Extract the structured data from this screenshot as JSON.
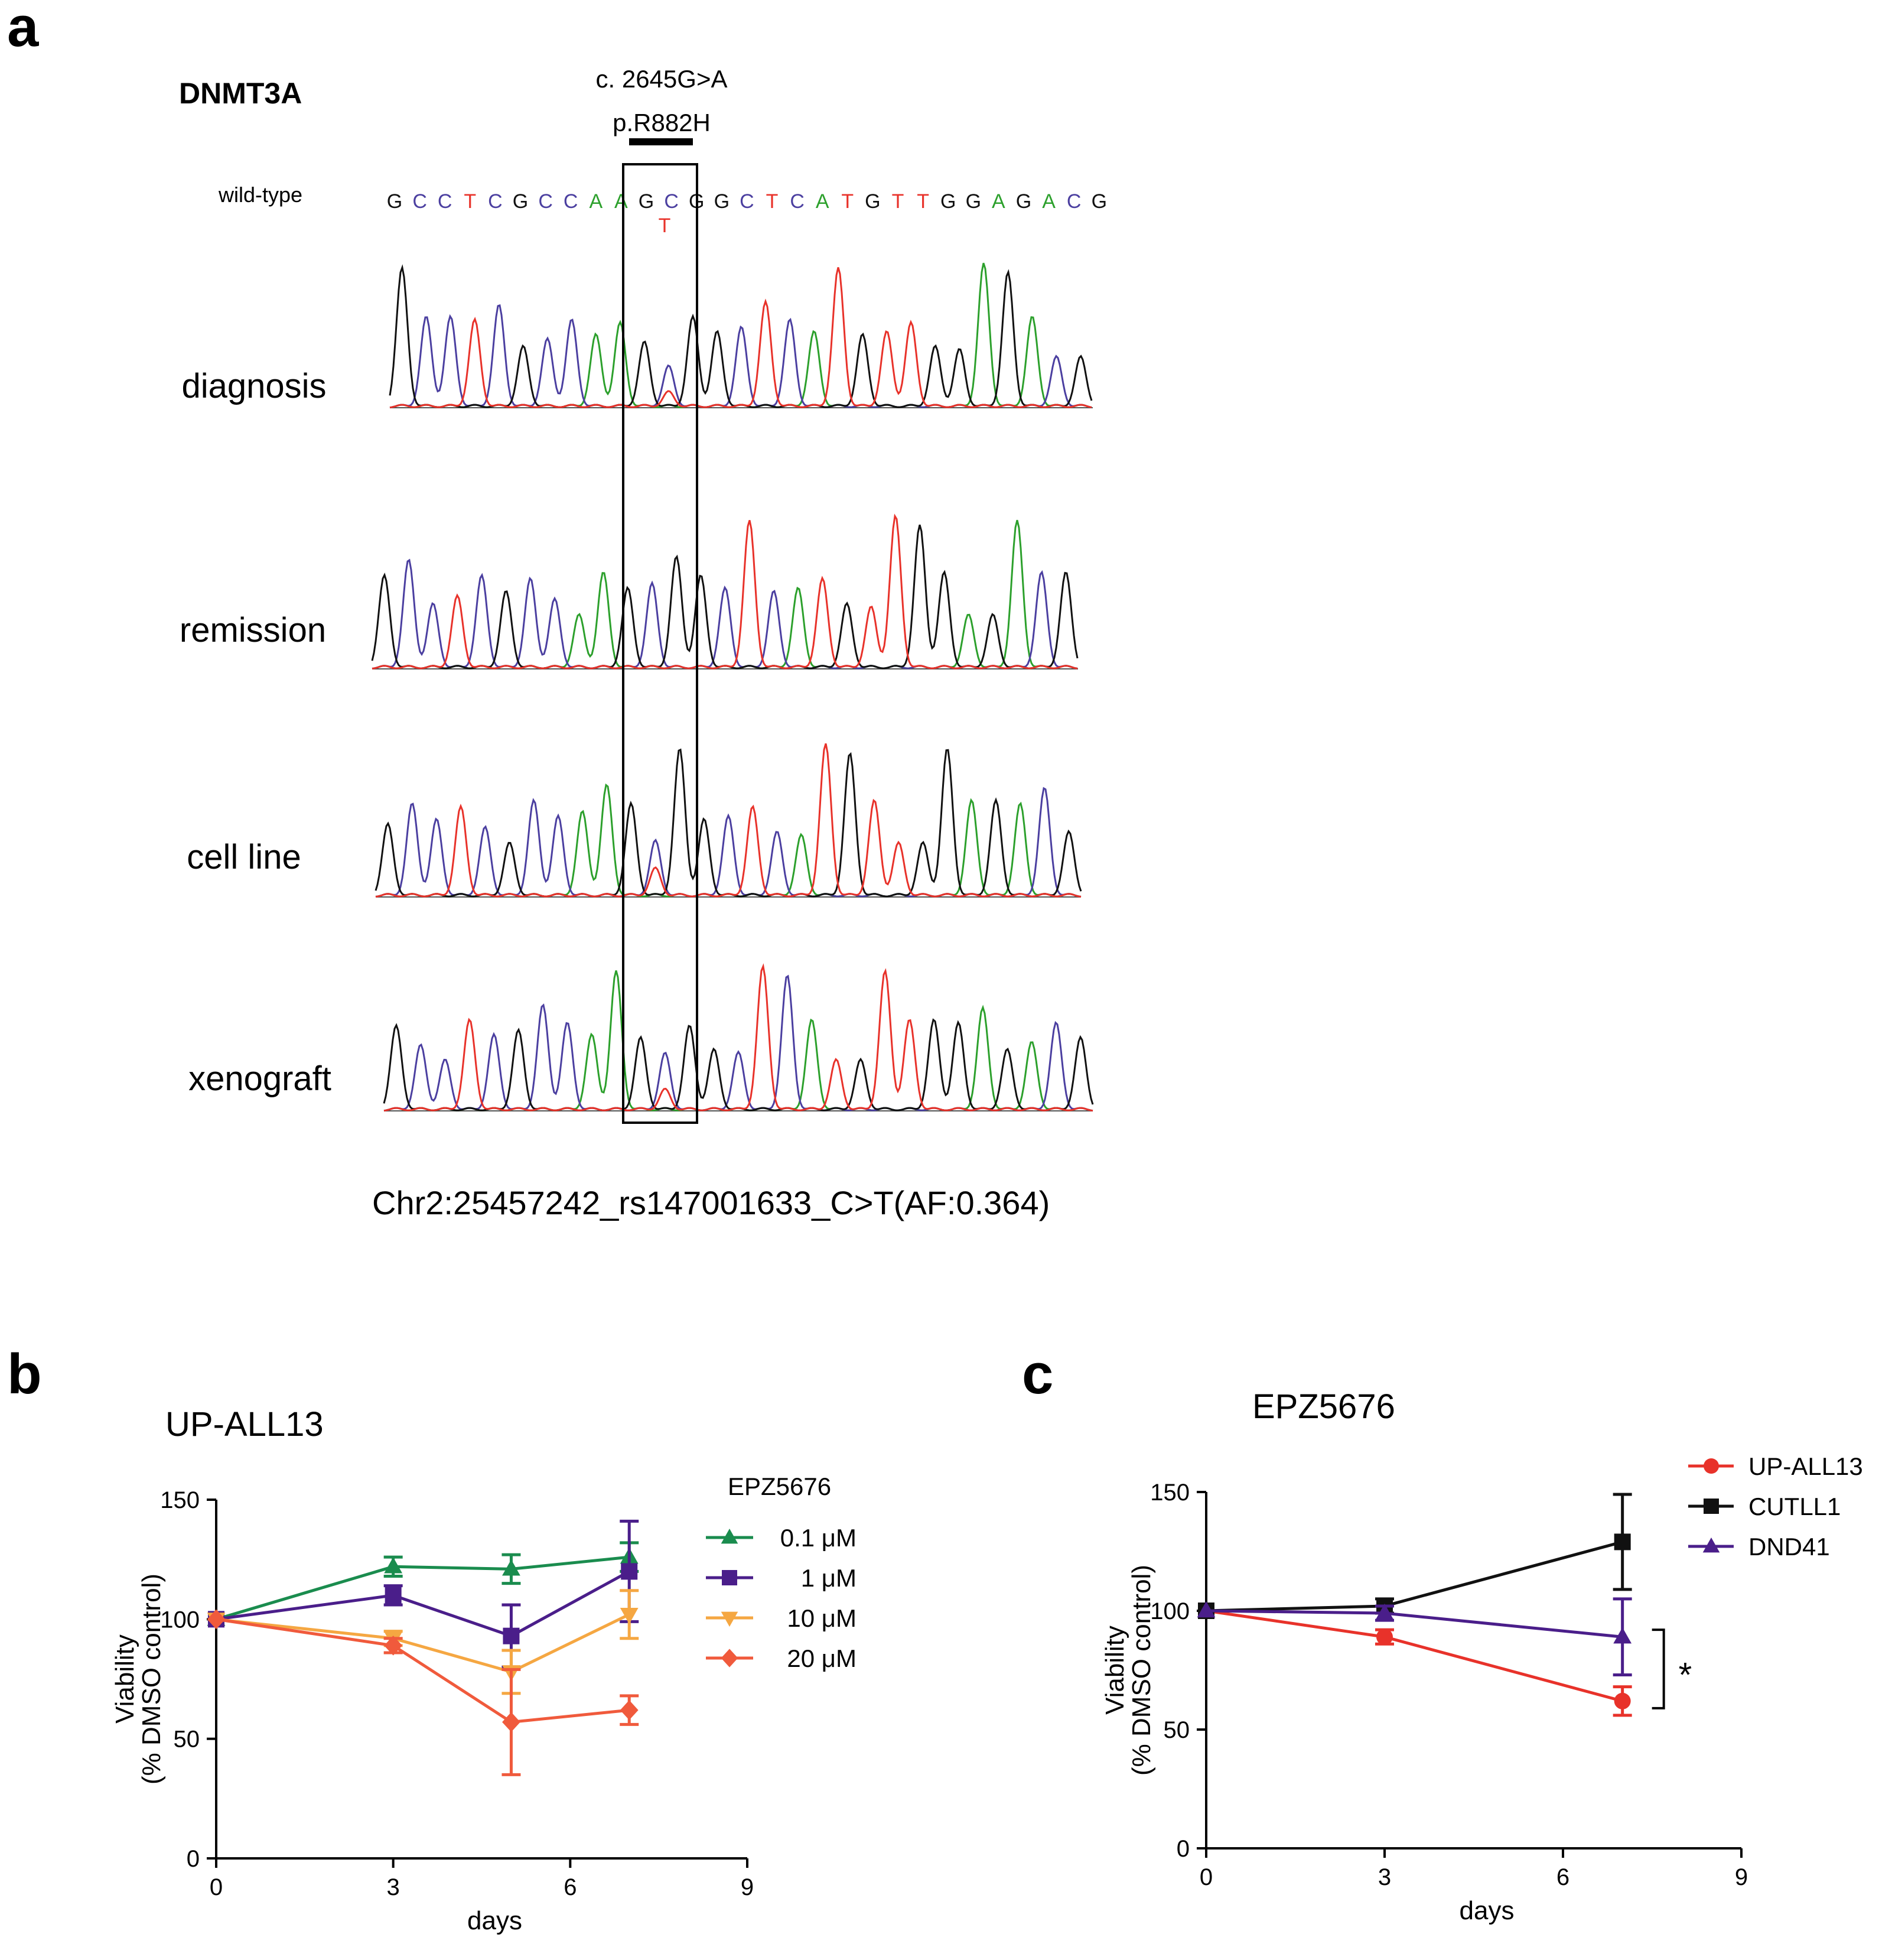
{
  "panel_a": {
    "letter": "a",
    "gene": "DNMT3A",
    "mutation_cdna": "c. 2645G>A",
    "mutation_protein": "p.R882H",
    "wildtype_label": "wild-type",
    "wildtype_sequence": [
      "G",
      "C",
      "C",
      "T",
      "C",
      "G",
      "C",
      "C",
      "A",
      "A",
      "G",
      "C",
      "G",
      "G",
      "C",
      "T",
      "C",
      "A",
      "T",
      "G",
      "T",
      "T",
      "G",
      "G",
      "A",
      "G",
      "A",
      "C",
      "G"
    ],
    "variant_base": "T",
    "samples": [
      "diagnosis",
      "remission",
      "cell line",
      "xenograft"
    ],
    "footnote": "Chr2:25457242_rs147001633_C>T(AF:0.364)",
    "base_colors": {
      "A": "#2ca02c",
      "C": "#4b3fa0",
      "G": "#111111",
      "T": "#e8322a"
    }
  },
  "chart_data": [
    {
      "type": "line",
      "panel": "b",
      "title": "UP-ALL13",
      "xlabel": "days",
      "ylabel": [
        "Viability",
        "(% DMSO control)"
      ],
      "xlim": [
        0,
        9
      ],
      "ylim": [
        0,
        150
      ],
      "xticks": [
        "0",
        "3",
        "6",
        "9"
      ],
      "yticks": [
        "0",
        "50",
        "100",
        "150"
      ],
      "legend_title": "EPZ5676",
      "legend_position": "right",
      "x": [
        0,
        3,
        5,
        7
      ],
      "series": [
        {
          "name": "0.1 μM",
          "color": "#1a8c4e",
          "marker": "triangle-up",
          "values": [
            100,
            122,
            121,
            126
          ],
          "errors": [
            0,
            4,
            6,
            6
          ]
        },
        {
          "name": "1 μM",
          "color": "#4a1e8a",
          "marker": "square",
          "values": [
            100,
            110,
            93,
            120
          ],
          "errors": [
            0,
            4,
            13,
            21
          ]
        },
        {
          "name": "10 μM",
          "color": "#f5a742",
          "marker": "triangle-down",
          "values": [
            100,
            92,
            78,
            102
          ],
          "errors": [
            0,
            3,
            9,
            10
          ]
        },
        {
          "name": "20 μM",
          "color": "#f05a3c",
          "marker": "diamond",
          "values": [
            100,
            89,
            57,
            62
          ],
          "errors": [
            0,
            3,
            22,
            6
          ]
        }
      ]
    },
    {
      "type": "line",
      "panel": "c",
      "title": "EPZ5676",
      "xlabel": "days",
      "ylabel": [
        "Viability",
        "(% DMSO control)"
      ],
      "xlim": [
        0,
        9
      ],
      "ylim": [
        0,
        150
      ],
      "xticks": [
        "0",
        "3",
        "6",
        "9"
      ],
      "yticks": [
        "0",
        "50",
        "100",
        "150"
      ],
      "legend_position": "top-right",
      "x": [
        0,
        3,
        7
      ],
      "series": [
        {
          "name": "UP-ALL13",
          "color": "#e8322a",
          "marker": "circle",
          "values": [
            100,
            89,
            62
          ],
          "errors": [
            0,
            3,
            6
          ]
        },
        {
          "name": "CUTLL1",
          "color": "#111111",
          "marker": "square",
          "values": [
            100,
            102,
            129
          ],
          "errors": [
            0,
            3,
            20
          ]
        },
        {
          "name": "DND41",
          "color": "#4a1e8a",
          "marker": "triangle-up",
          "values": [
            100,
            99,
            89
          ],
          "errors": [
            0,
            3,
            16
          ]
        }
      ],
      "annotation": "*"
    }
  ]
}
